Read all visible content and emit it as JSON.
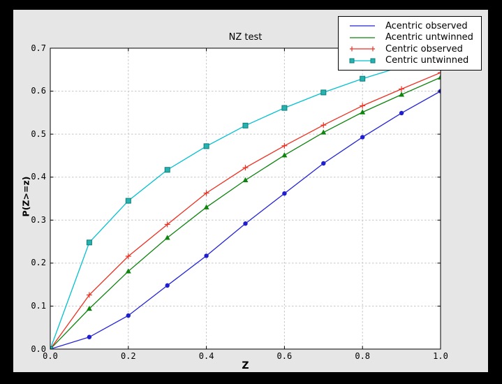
{
  "window": {
    "background": "#000000",
    "figure_background": "#e6e6e6",
    "plot_background": "#ffffff",
    "grid_color": "#c5c5c5",
    "spine_color": "#000000"
  },
  "chart_data": {
    "type": "line",
    "title": "NZ test",
    "xlabel": "Z",
    "ylabel": "P(Z>=z)",
    "xlim": [
      0.0,
      1.0
    ],
    "ylim": [
      0.0,
      0.7
    ],
    "grid": true,
    "legend_position": "upper right",
    "xtick_labels": [
      "0.0",
      "0.2",
      "0.4",
      "0.6",
      "0.8",
      "1.0"
    ],
    "ytick_labels": [
      "0.0",
      "0.1",
      "0.2",
      "0.3",
      "0.4",
      "0.5",
      "0.6",
      "0.7"
    ],
    "x": [
      0.0,
      0.1,
      0.2,
      0.3,
      0.4,
      0.5,
      0.6,
      0.7,
      0.8,
      0.9,
      1.0
    ],
    "series": [
      {
        "name": "Acentric observed",
        "color": "#2323d6",
        "marker": "circle",
        "marker_fill": "#1f1fd0",
        "marker_edge": "#1f1fd0",
        "legend_marker": "none",
        "values": [
          0.0,
          0.028,
          0.078,
          0.148,
          0.217,
          0.292,
          0.362,
          0.432,
          0.493,
          0.549,
          0.6
        ]
      },
      {
        "name": "Acentric untwinned",
        "color": "#0e830e",
        "marker": "triangle",
        "marker_fill": "#0e830e",
        "marker_edge": "#0e830e",
        "legend_marker": "none",
        "values": [
          0.0,
          0.094,
          0.181,
          0.259,
          0.33,
          0.393,
          0.451,
          0.504,
          0.551,
          0.592,
          0.632
        ]
      },
      {
        "name": "Centric observed",
        "color": "#ee2e20",
        "marker": "plus",
        "marker_fill": "#ee2e20",
        "marker_edge": "#ee2e20",
        "legend_marker": "plus",
        "values": [
          0.0,
          0.126,
          0.216,
          0.29,
          0.363,
          0.422,
          0.473,
          0.521,
          0.566,
          0.605,
          0.643
        ]
      },
      {
        "name": "Centric untwinned",
        "color": "#00c0d0",
        "marker": "square",
        "marker_fill": "#26b3ae",
        "marker_edge": "#0c7c7c",
        "legend_marker": "square",
        "values": [
          0.0,
          0.248,
          0.345,
          0.417,
          0.472,
          0.52,
          0.561,
          0.597,
          0.629,
          0.657,
          0.683
        ]
      }
    ]
  }
}
